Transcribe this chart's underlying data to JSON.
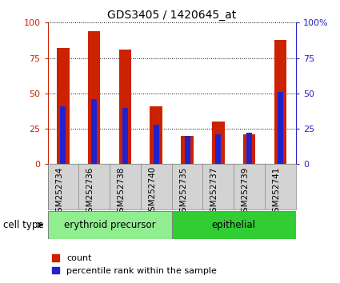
{
  "title": "GDS3405 / 1420645_at",
  "categories": [
    "GSM252734",
    "GSM252736",
    "GSM252738",
    "GSM252740",
    "GSM252735",
    "GSM252737",
    "GSM252739",
    "GSM252741"
  ],
  "red_values": [
    82,
    94,
    81,
    41,
    20,
    30,
    21,
    88
  ],
  "blue_values": [
    41,
    46,
    40,
    28,
    20,
    21,
    22,
    51
  ],
  "cell_type_labels": [
    "erythroid precursor",
    "epithelial"
  ],
  "cell_type_colors": [
    "#90ee90",
    "#32cd32"
  ],
  "cell_type_label": "cell type",
  "ylim_left": [
    0,
    100
  ],
  "ylim_right": [
    0,
    100
  ],
  "yticks": [
    0,
    25,
    50,
    75,
    100
  ],
  "yticklabels_left": [
    "0",
    "25",
    "50",
    "75",
    "100"
  ],
  "yticklabels_right": [
    "0",
    "25",
    "50",
    "75",
    "100%"
  ],
  "red_color": "#cc2200",
  "blue_color": "#2222cc",
  "bar_width": 0.4,
  "bg_color": "#ffffff",
  "legend_count": "count",
  "legend_percentile": "percentile rank within the sample"
}
